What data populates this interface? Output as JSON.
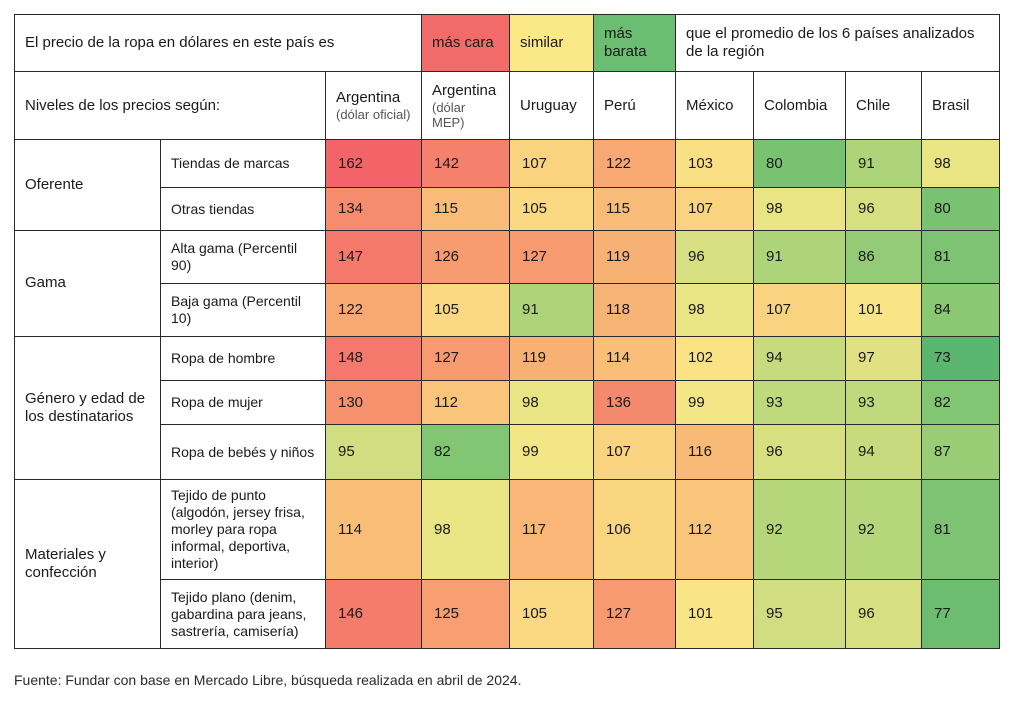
{
  "chart_data": {
    "type": "table",
    "title": "El precio de la ropa en dólares en este país es",
    "legend": [
      {
        "label": "más cara",
        "color": "#f26b6b"
      },
      {
        "label": "similar",
        "color": "#fbe887"
      },
      {
        "label": "más barata",
        "color": "#6bbd72"
      }
    ],
    "legend_note": "que el promedio de los 6 países analizados de la región",
    "row_header_label": "Niveles de los precios según:",
    "columns": [
      {
        "name": "Argentina",
        "note": "(dólar oficial)"
      },
      {
        "name": "Argentina",
        "note": "(dólar MEP)"
      },
      {
        "name": "Uruguay",
        "note": ""
      },
      {
        "name": "Perú",
        "note": ""
      },
      {
        "name": "México",
        "note": ""
      },
      {
        "name": "Colombia",
        "note": ""
      },
      {
        "name": "Chile",
        "note": ""
      },
      {
        "name": "Brasil",
        "note": ""
      }
    ],
    "groups": [
      {
        "label": "Oferente",
        "rows": [
          {
            "label": "Tiendas de marcas",
            "values": [
              162,
              142,
              107,
              122,
              103,
              80,
              91,
              98
            ]
          },
          {
            "label": "Otras tiendas",
            "values": [
              134,
              115,
              105,
              115,
              107,
              98,
              96,
              80
            ]
          }
        ]
      },
      {
        "label": "Gama",
        "rows": [
          {
            "label": "Alta gama (Percentil 90)",
            "values": [
              147,
              126,
              127,
              119,
              96,
              91,
              86,
              81
            ]
          },
          {
            "label": "Baja gama (Percentil 10)",
            "values": [
              122,
              105,
              91,
              118,
              98,
              107,
              101,
              84
            ]
          }
        ]
      },
      {
        "label": "Género y edad de los destinatarios",
        "rows": [
          {
            "label": "Ropa de hombre",
            "values": [
              148,
              127,
              119,
              114,
              102,
              94,
              97,
              73
            ]
          },
          {
            "label": "Ropa de mujer",
            "values": [
              130,
              112,
              98,
              136,
              99,
              93,
              93,
              82
            ]
          },
          {
            "label": "Ropa de bebés y niños",
            "values": [
              95,
              82,
              99,
              107,
              116,
              96,
              94,
              87
            ]
          }
        ]
      },
      {
        "label": "Materiales y confección",
        "rows": [
          {
            "label": "Tejido de punto (algodón, jersey frisa, morley para ropa informal, deportiva, interior)",
            "values": [
              114,
              98,
              117,
              106,
              112,
              92,
              92,
              81
            ]
          },
          {
            "label": "Tejido plano (denim, gabardina para jeans, sastrería, camisería)",
            "values": [
              146,
              125,
              105,
              127,
              101,
              95,
              96,
              77
            ]
          }
        ]
      }
    ]
  },
  "source": "Fuente: Fundar con base en Mercado Libre, búsqueda realizada en abril de 2024."
}
